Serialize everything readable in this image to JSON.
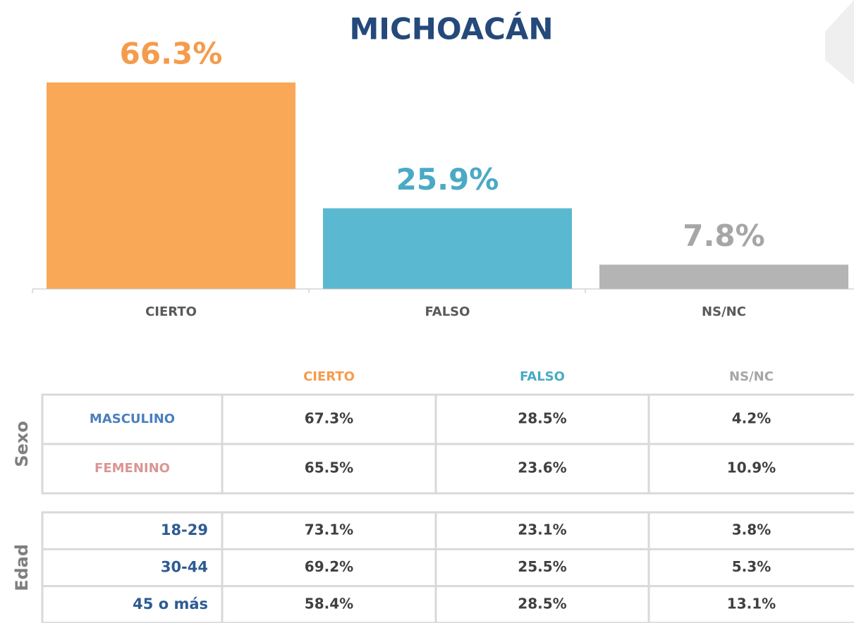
{
  "chart_data": {
    "type": "bar",
    "title": "MICHOACÁN",
    "categories": [
      "CIERTO",
      "FALSO",
      "NS/NC"
    ],
    "values": [
      66.3,
      25.9,
      7.8
    ],
    "value_labels": [
      "66.3%",
      "25.9%",
      "7.8%"
    ],
    "colors": [
      "#f9a857",
      "#5bb8d1",
      "#b4b4b4"
    ]
  },
  "table": {
    "columns": [
      "CIERTO",
      "FALSO",
      "NS/NC"
    ],
    "groups": [
      {
        "label": "Sexo",
        "rows": [
          {
            "label": "MASCULINO",
            "cells": [
              "67.3%",
              "28.5%",
              "4.2%"
            ]
          },
          {
            "label": "FEMENINO",
            "cells": [
              "65.5%",
              "23.6%",
              "10.9%"
            ]
          }
        ]
      },
      {
        "label": "Edad",
        "rows": [
          {
            "label": "18-29",
            "cells": [
              "73.1%",
              "23.1%",
              "3.8%"
            ]
          },
          {
            "label": "30-44",
            "cells": [
              "69.2%",
              "25.5%",
              "5.3%"
            ]
          },
          {
            "label": "45 o más",
            "cells": [
              "58.4%",
              "28.5%",
              "13.1%"
            ]
          }
        ]
      }
    ]
  }
}
